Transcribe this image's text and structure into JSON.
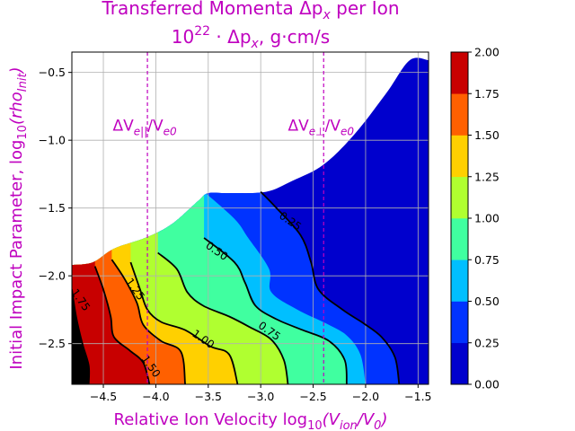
{
  "chart_data": {
    "type": "contourf",
    "title_line1": "Transferred Momenta Δp",
    "title_line1_sub": "x",
    "title_line1_tail": " per Ion",
    "title_line2_base": "10",
    "title_line2_exp": "22",
    "title_line2_rest": " · Δp",
    "title_line2_sub": "x",
    "title_line2_unit": ", g·cm/s",
    "xlabel_text": "Relative Ion Velocity  log",
    "xlabel_sub": "10",
    "xlabel_arg": "(V",
    "xlabel_arg_sub": "ion",
    "xlabel_arg_tail": "/V",
    "xlabel_arg_sub2": "0",
    "xlabel_close": ")",
    "ylabel_text": "Initial Impact Parameter, log",
    "ylabel_sub": "10",
    "ylabel_arg": "(rho",
    "ylabel_arg_sub": "Init",
    "ylabel_close": ")",
    "xlim": [
      -4.8,
      -1.4
    ],
    "ylim": [
      -2.8,
      -0.35
    ],
    "xticks": [
      -4.5,
      -4.0,
      -3.5,
      -3.0,
      -2.5,
      -2.0,
      -1.5
    ],
    "xtick_labels": [
      "−4.5",
      "−4.0",
      "−3.5",
      "−3.0",
      "−2.5",
      "−2.0",
      "−1.5"
    ],
    "yticks": [
      -0.5,
      -1.0,
      -1.5,
      -2.0,
      -2.5
    ],
    "ytick_labels": [
      "−0.5",
      "−1.0",
      "−1.5",
      "−2.0",
      "−2.5"
    ],
    "grid": true,
    "levels": [
      0.0,
      0.25,
      0.5,
      0.75,
      1.0,
      1.25,
      1.5,
      1.75,
      2.0
    ],
    "colorbar_labels": [
      "0.00",
      "0.25",
      "0.50",
      "0.75",
      "1.00",
      "1.25",
      "1.50",
      "1.75",
      "2.00"
    ],
    "colormap": [
      "#0000cd",
      "#0033ff",
      "#00bfff",
      "#40ffa0",
      "#b0ff30",
      "#ffd000",
      "#ff6000",
      "#c80000"
    ],
    "boundary": [
      [
        -4.8,
        -1.92
      ],
      [
        -4.6,
        -1.9
      ],
      [
        -4.4,
        -1.8
      ],
      [
        -4.1,
        -1.72
      ],
      [
        -3.85,
        -1.62
      ],
      [
        -3.6,
        -1.45
      ],
      [
        -3.5,
        -1.39
      ],
      [
        -3.3,
        -1.39
      ],
      [
        -2.95,
        -1.38
      ],
      [
        -2.7,
        -1.3
      ],
      [
        -2.4,
        -1.18
      ],
      [
        -2.1,
        -0.95
      ],
      [
        -1.8,
        -0.65
      ],
      [
        -1.58,
        -0.41
      ],
      [
        -1.4,
        -0.41
      ]
    ],
    "contours": [
      {
        "level": 0.25,
        "label": "0.25",
        "label_at": [
          -2.72,
          -1.6
        ],
        "points": [
          [
            -3.0,
            -1.38
          ],
          [
            -2.85,
            -1.5
          ],
          [
            -2.62,
            -1.7
          ],
          [
            -2.52,
            -1.9
          ],
          [
            -2.45,
            -2.1
          ],
          [
            -2.22,
            -2.25
          ],
          [
            -2.02,
            -2.35
          ],
          [
            -1.85,
            -2.45
          ],
          [
            -1.72,
            -2.6
          ],
          [
            -1.68,
            -2.8
          ]
        ]
      },
      {
        "level": 0.5,
        "label": "0.50",
        "label_at": [
          -3.42,
          -1.82
        ],
        "points": [
          [
            -3.54,
            -1.72
          ],
          [
            -3.25,
            -1.9
          ],
          [
            -3.15,
            -2.05
          ],
          [
            -3.05,
            -2.22
          ],
          [
            -2.85,
            -2.32
          ],
          [
            -2.6,
            -2.4
          ],
          [
            -2.35,
            -2.48
          ],
          [
            -2.2,
            -2.62
          ],
          [
            -2.18,
            -2.8
          ]
        ]
      },
      {
        "level": 0.75,
        "label": "0.75",
        "label_at": [
          -2.92,
          -2.41
        ],
        "points": [
          [
            -3.98,
            -1.83
          ],
          [
            -3.8,
            -1.95
          ],
          [
            -3.7,
            -2.12
          ],
          [
            -3.55,
            -2.22
          ],
          [
            -3.3,
            -2.3
          ],
          [
            -3.1,
            -2.38
          ],
          [
            -2.9,
            -2.47
          ],
          [
            -2.78,
            -2.62
          ],
          [
            -2.74,
            -2.8
          ]
        ]
      },
      {
        "level": 1.0,
        "label": "1.00",
        "label_at": [
          -3.55,
          -2.47
        ],
        "points": [
          [
            -4.24,
            -1.9
          ],
          [
            -4.15,
            -2.1
          ],
          [
            -4.08,
            -2.25
          ],
          [
            -3.95,
            -2.34
          ],
          [
            -3.72,
            -2.4
          ],
          [
            -3.48,
            -2.52
          ],
          [
            -3.3,
            -2.58
          ],
          [
            -3.22,
            -2.8
          ]
        ]
      },
      {
        "level": 1.25,
        "label": "1.25",
        "label_at": [
          -4.2,
          -2.1
        ],
        "points": [
          [
            -4.42,
            -1.88
          ],
          [
            -4.3,
            -2.02
          ],
          [
            -4.18,
            -2.2
          ],
          [
            -4.12,
            -2.36
          ],
          [
            -3.95,
            -2.48
          ],
          [
            -3.76,
            -2.56
          ],
          [
            -3.72,
            -2.8
          ]
        ]
      },
      {
        "level": 1.5,
        "label": "1.50",
        "label_at": [
          -4.05,
          -2.67
        ],
        "points": [
          [
            -4.58,
            -1.93
          ],
          [
            -4.5,
            -2.1
          ],
          [
            -4.43,
            -2.3
          ],
          [
            -4.4,
            -2.45
          ],
          [
            -4.25,
            -2.55
          ],
          [
            -4.12,
            -2.64
          ],
          [
            -4.06,
            -2.8
          ]
        ]
      },
      {
        "level": 1.75,
        "label": "1.75",
        "label_at": [
          -4.72,
          -2.18
        ],
        "points": [
          [
            -4.8,
            -2.1
          ],
          [
            -4.76,
            -2.3
          ],
          [
            -4.7,
            -2.5
          ],
          [
            -4.64,
            -2.66
          ],
          [
            -4.64,
            -2.8
          ]
        ]
      }
    ],
    "fill_order_boundaries": [
      [
        [
          -3.0,
          -1.38
        ],
        [
          -2.85,
          -1.5
        ],
        [
          -2.62,
          -1.7
        ],
        [
          -2.52,
          -1.9
        ],
        [
          -2.45,
          -2.1
        ],
        [
          -2.22,
          -2.25
        ],
        [
          -2.02,
          -2.35
        ],
        [
          -1.85,
          -2.45
        ],
        [
          -1.72,
          -2.6
        ],
        [
          -1.68,
          -2.8
        ]
      ],
      [
        [
          -3.54,
          -1.38
        ],
        [
          -3.25,
          -1.58
        ],
        [
          -3.12,
          -1.72
        ],
        [
          -2.92,
          -1.95
        ],
        [
          -2.9,
          -2.12
        ],
        [
          -2.65,
          -2.25
        ],
        [
          -2.38,
          -2.35
        ],
        [
          -2.18,
          -2.44
        ],
        [
          -2.05,
          -2.58
        ],
        [
          -2.0,
          -2.8
        ]
      ],
      [
        [
          -3.54,
          -1.72
        ],
        [
          -3.25,
          -1.9
        ],
        [
          -3.15,
          -2.05
        ],
        [
          -3.05,
          -2.22
        ],
        [
          -2.85,
          -2.32
        ],
        [
          -2.6,
          -2.4
        ],
        [
          -2.35,
          -2.48
        ],
        [
          -2.2,
          -2.62
        ],
        [
          -2.18,
          -2.8
        ]
      ],
      [
        [
          -3.98,
          -1.83
        ],
        [
          -3.8,
          -1.95
        ],
        [
          -3.7,
          -2.12
        ],
        [
          -3.55,
          -2.22
        ],
        [
          -3.3,
          -2.3
        ],
        [
          -3.1,
          -2.38
        ],
        [
          -2.9,
          -2.47
        ],
        [
          -2.78,
          -2.62
        ],
        [
          -2.74,
          -2.8
        ]
      ],
      [
        [
          -4.24,
          -1.9
        ],
        [
          -4.15,
          -2.1
        ],
        [
          -4.08,
          -2.25
        ],
        [
          -3.95,
          -2.34
        ],
        [
          -3.72,
          -2.4
        ],
        [
          -3.48,
          -2.52
        ],
        [
          -3.3,
          -2.58
        ],
        [
          -3.22,
          -2.8
        ]
      ],
      [
        [
          -4.42,
          -1.88
        ],
        [
          -4.3,
          -2.02
        ],
        [
          -4.18,
          -2.2
        ],
        [
          -4.12,
          -2.36
        ],
        [
          -3.95,
          -2.48
        ],
        [
          -3.76,
          -2.56
        ],
        [
          -3.72,
          -2.8
        ]
      ],
      [
        [
          -4.58,
          -1.93
        ],
        [
          -4.5,
          -2.1
        ],
        [
          -4.43,
          -2.3
        ],
        [
          -4.4,
          -2.45
        ],
        [
          -4.25,
          -2.55
        ],
        [
          -4.12,
          -2.64
        ],
        [
          -4.06,
          -2.8
        ]
      ],
      [
        [
          -4.8,
          -2.1
        ],
        [
          -4.76,
          -2.3
        ],
        [
          -4.7,
          -2.5
        ],
        [
          -4.64,
          -2.66
        ],
        [
          -4.64,
          -2.8
        ]
      ]
    ],
    "vlines": [
      {
        "x": -4.08,
        "label": "ΔV",
        "label_sub": "e||",
        "label_tail": "/V",
        "label_sub2": "e0",
        "label_y": -0.93
      },
      {
        "x": -2.4,
        "label": "ΔV",
        "label_sub": "e⊥",
        "label_tail": "/V",
        "label_sub2": "e0",
        "label_y": -0.93
      }
    ],
    "colors": {
      "accent": "#bf00bf",
      "grid": "#b0b0b0",
      "contour": "#000000"
    }
  }
}
